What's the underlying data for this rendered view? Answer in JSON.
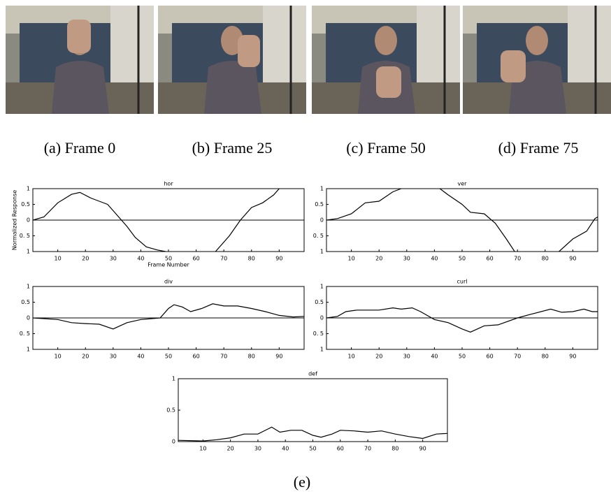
{
  "figure": {
    "subcaptions": [
      "(a) Frame 0",
      "(b) Frame 25",
      "(c) Frame 50",
      "(d) Frame 75"
    ],
    "caption": "(e)"
  },
  "chart_data": [
    {
      "type": "line",
      "title": "hor",
      "xlabel": "Frame Number",
      "ylabel": "Normalized Response",
      "color": "#000000",
      "x": [
        1,
        5,
        10,
        15,
        18,
        22,
        25,
        28,
        31,
        35,
        38,
        42,
        46,
        49,
        55,
        67,
        72,
        76,
        80,
        84,
        88,
        90,
        95
      ],
      "values": [
        0,
        0.1,
        0.55,
        0.82,
        0.88,
        0.7,
        0.6,
        0.5,
        0.2,
        -0.2,
        -0.55,
        -0.85,
        -0.95,
        -1,
        null,
        -1,
        -0.5,
        0,
        0.4,
        0.55,
        0.8,
        1,
        null
      ],
      "xlim": [
        1,
        99
      ],
      "ylim": [
        -1,
        1
      ],
      "xticks": [
        10,
        20,
        30,
        40,
        50,
        60,
        70,
        80,
        90
      ],
      "yticks": [
        {
          "value": -1,
          "label": "1"
        },
        {
          "value": -0.5,
          "label": "0. 5"
        },
        0,
        0.5,
        1
      ]
    },
    {
      "type": "line",
      "title": "ver",
      "color": "#000000",
      "x": [
        1,
        5,
        10,
        15,
        20,
        25,
        28,
        35,
        42,
        45,
        50,
        53,
        58,
        62,
        66,
        69,
        75,
        85,
        90,
        95,
        98,
        99
      ],
      "values": [
        0,
        0.05,
        0.2,
        0.55,
        0.6,
        0.9,
        1,
        null,
        1,
        0.8,
        0.5,
        0.25,
        0.2,
        -0.1,
        -0.6,
        -1,
        null,
        -1,
        -0.6,
        -0.35,
        0.05,
        0.1
      ],
      "xlim": [
        1,
        99
      ],
      "ylim": [
        -1,
        1
      ],
      "xticks": [
        10,
        20,
        30,
        40,
        50,
        60,
        70,
        80,
        90
      ],
      "yticks": [
        {
          "value": -1,
          "label": "1"
        },
        {
          "value": -0.5,
          "label": "0. 5"
        },
        0,
        0.5,
        1
      ]
    },
    {
      "type": "line",
      "title": "div",
      "color": "#000000",
      "x": [
        1,
        10,
        15,
        20,
        25,
        30,
        35,
        40,
        47,
        50,
        52,
        55,
        58,
        62,
        66,
        70,
        75,
        80,
        85,
        90,
        95,
        99
      ],
      "values": [
        0,
        -0.05,
        -0.15,
        -0.18,
        -0.2,
        -0.35,
        -0.15,
        -0.05,
        0,
        0.3,
        0.42,
        0.35,
        0.2,
        0.3,
        0.45,
        0.38,
        0.38,
        0.3,
        0.2,
        0.08,
        0.03,
        0.05
      ],
      "xlim": [
        1,
        99
      ],
      "ylim": [
        -1,
        1
      ],
      "xticks": [
        10,
        20,
        30,
        40,
        50,
        60,
        70,
        80,
        90
      ],
      "yticks": [
        {
          "value": -1,
          "label": "1"
        },
        {
          "value": -0.5,
          "label": "0. 5"
        },
        0,
        0.5,
        1
      ]
    },
    {
      "type": "line",
      "title": "curl",
      "color": "#000000",
      "x": [
        1,
        5,
        8,
        12,
        20,
        25,
        28,
        32,
        35,
        40,
        45,
        50,
        53,
        58,
        63,
        70,
        75,
        82,
        86,
        90,
        94,
        97,
        99
      ],
      "values": [
        0,
        0.05,
        0.2,
        0.25,
        0.25,
        0.32,
        0.28,
        0.32,
        0.2,
        -0.05,
        -0.15,
        -0.35,
        -0.45,
        -0.25,
        -0.22,
        0,
        0.12,
        0.28,
        0.18,
        0.2,
        0.28,
        0.2,
        0.2
      ],
      "xlim": [
        1,
        99
      ],
      "ylim": [
        -1,
        1
      ],
      "xticks": [
        10,
        20,
        30,
        40,
        50,
        60,
        70,
        80,
        90
      ],
      "yticks": [
        {
          "value": -1,
          "label": "1"
        },
        {
          "value": -0.5,
          "label": "0. 5"
        },
        0,
        0.5,
        1
      ]
    },
    {
      "type": "line",
      "title": "def",
      "color": "#000000",
      "x": [
        1,
        10,
        15,
        20,
        25,
        30,
        35,
        38,
        42,
        46,
        50,
        53,
        57,
        60,
        65,
        70,
        75,
        80,
        85,
        90,
        95,
        99
      ],
      "values": [
        0.02,
        0.01,
        0.03,
        0.06,
        0.12,
        0.12,
        0.23,
        0.15,
        0.18,
        0.18,
        0.1,
        0.07,
        0.12,
        0.18,
        0.17,
        0.15,
        0.17,
        0.12,
        0.08,
        0.05,
        0.12,
        0.13
      ],
      "xlim": [
        1,
        99
      ],
      "ylim": [
        0,
        1
      ],
      "xticks": [
        10,
        20,
        30,
        40,
        50,
        60,
        70,
        80,
        90
      ],
      "yticks": [
        0,
        0.5,
        1
      ]
    }
  ]
}
